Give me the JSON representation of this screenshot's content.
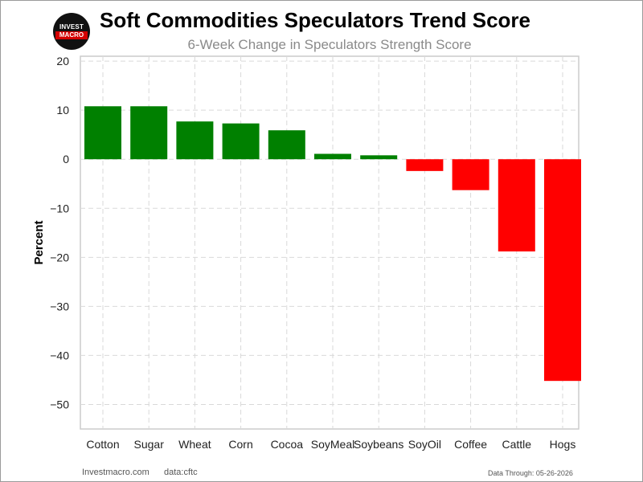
{
  "header": {
    "logo_top": "INVEST",
    "logo_bottom": "MACRO",
    "title": "Soft Commodities Speculators Trend Score",
    "subtitle": "6-Week Change in Speculators Strength Score"
  },
  "footer": {
    "site": "Investmacro.com",
    "source": "data:cftc",
    "data_through": "Data Through: 05-26-2026"
  },
  "colors": {
    "positive": "#008000",
    "negative": "#ff0000"
  },
  "chart_data": {
    "type": "bar",
    "title": "Soft Commodities Speculators Trend Score",
    "subtitle": "6-Week Change in Speculators Strength Score",
    "xlabel": "",
    "ylabel": "Percent",
    "ylim": [
      -55,
      21
    ],
    "yticks": [
      -50,
      -40,
      -30,
      -20,
      -10,
      0,
      10,
      20
    ],
    "grid": true,
    "categories": [
      "Cotton",
      "Sugar",
      "Wheat",
      "Corn",
      "Cocoa",
      "SoyMeal",
      "Soybeans",
      "SoyOil",
      "Coffee",
      "Cattle",
      "Hogs"
    ],
    "values": [
      10.8,
      10.8,
      7.7,
      7.3,
      5.9,
      1.1,
      0.8,
      -2.4,
      -6.3,
      -18.8,
      -45.2
    ]
  }
}
